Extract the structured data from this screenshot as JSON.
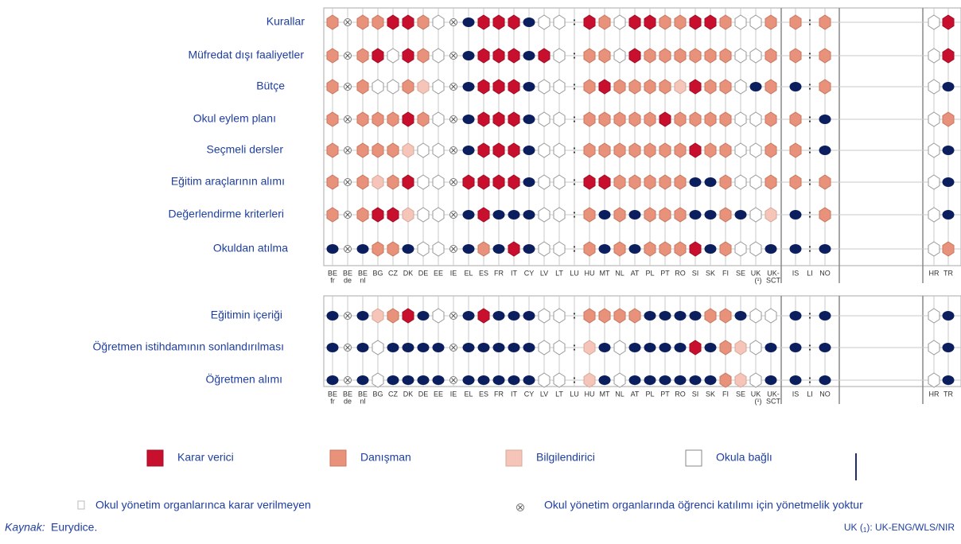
{
  "columns": [
    [
      "BE",
      "fr"
    ],
    [
      "BE",
      "de"
    ],
    [
      "BE",
      "nl"
    ],
    [
      "BG"
    ],
    [
      "CZ"
    ],
    [
      "DK"
    ],
    [
      "DE"
    ],
    [
      "EE"
    ],
    [
      "IE"
    ],
    [
      "EL"
    ],
    [
      "ES"
    ],
    [
      "FR"
    ],
    [
      "IT"
    ],
    [
      "CY"
    ],
    [
      "LV"
    ],
    [
      "LT"
    ],
    [
      "LU"
    ],
    [
      "HU"
    ],
    [
      "MT"
    ],
    [
      "NL"
    ],
    [
      "AT"
    ],
    [
      "PL"
    ],
    [
      "PT"
    ],
    [
      "RO"
    ],
    [
      "SI"
    ],
    [
      "SK"
    ],
    [
      "FI"
    ],
    [
      "SE"
    ],
    [
      "UK",
      "(¹)"
    ],
    [
      "UK-",
      "SCT"
    ],
    [
      "IS"
    ],
    [
      "LI"
    ],
    [
      "NO"
    ],
    [
      "HR"
    ],
    [
      "TR"
    ]
  ],
  "categories": [
    "Karar verici",
    "Danışman",
    "Bilgilendirici",
    "Okula bağlı",
    "Okul yönetim organlarınca karar verilmeyen",
    "Okul yönetim organlarında öğrenci katılımı için yönetmelik yoktur"
  ],
  "rows_top": [
    {
      "label": "Kurallar",
      "cells": [
        1,
        5,
        1,
        1,
        0,
        0,
        1,
        3,
        5,
        4,
        0,
        0,
        0,
        4,
        3,
        3,
        ":",
        0,
        1,
        3,
        0,
        0,
        1,
        1,
        0,
        0,
        1,
        3,
        3,
        1,
        1,
        ":",
        1,
        3,
        0
      ]
    },
    {
      "label": "Müfredat dışı faaliyetler",
      "cells": [
        1,
        5,
        1,
        0,
        3,
        0,
        1,
        3,
        5,
        4,
        0,
        0,
        0,
        4,
        0,
        3,
        ":",
        1,
        1,
        3,
        0,
        1,
        1,
        1,
        1,
        1,
        1,
        3,
        3,
        1,
        1,
        ":",
        1,
        3,
        0
      ]
    },
    {
      "label": "Bütçe",
      "cells": [
        1,
        5,
        1,
        3,
        3,
        1,
        2,
        3,
        5,
        4,
        0,
        0,
        0,
        4,
        3,
        3,
        ":",
        1,
        0,
        1,
        1,
        1,
        1,
        2,
        0,
        1,
        1,
        3,
        4,
        1,
        4,
        ":",
        1,
        3,
        4
      ]
    },
    {
      "label": "Okul eylem planı",
      "cells": [
        1,
        5,
        1,
        1,
        1,
        0,
        1,
        3,
        5,
        4,
        0,
        0,
        0,
        4,
        3,
        3,
        ":",
        1,
        1,
        1,
        1,
        1,
        0,
        1,
        1,
        1,
        1,
        3,
        3,
        1,
        1,
        ":",
        4,
        3,
        1
      ]
    },
    {
      "label": "Seçmeli dersler",
      "cells": [
        1,
        5,
        1,
        1,
        1,
        2,
        3,
        3,
        5,
        4,
        0,
        0,
        0,
        4,
        3,
        3,
        ":",
        1,
        1,
        1,
        1,
        1,
        1,
        1,
        0,
        1,
        1,
        3,
        3,
        1,
        1,
        ":",
        4,
        3,
        4
      ]
    },
    {
      "label": "Eğitim araçlarının alımı",
      "cells": [
        1,
        5,
        1,
        2,
        1,
        0,
        3,
        3,
        5,
        0,
        0,
        0,
        0,
        4,
        3,
        3,
        ":",
        0,
        0,
        1,
        1,
        1,
        1,
        1,
        4,
        4,
        1,
        3,
        3,
        1,
        1,
        ":",
        1,
        3,
        4
      ]
    },
    {
      "label": "Değerlendirme kriterleri",
      "cells": [
        1,
        5,
        1,
        0,
        0,
        2,
        3,
        3,
        5,
        4,
        0,
        4,
        4,
        4,
        3,
        3,
        ":",
        1,
        4,
        1,
        4,
        1,
        1,
        1,
        4,
        4,
        1,
        4,
        3,
        2,
        4,
        ":",
        1,
        3,
        4
      ]
    },
    {
      "label": "Okuldan atılma",
      "cells": [
        4,
        5,
        4,
        1,
        1,
        4,
        3,
        3,
        5,
        4,
        1,
        4,
        0,
        4,
        3,
        3,
        ":",
        1,
        4,
        1,
        4,
        1,
        1,
        1,
        0,
        4,
        1,
        3,
        3,
        4,
        4,
        ":",
        4,
        3,
        1
      ]
    }
  ],
  "rows_bottom": [
    {
      "label": "Eğitimin içeriği",
      "cells": [
        4,
        5,
        4,
        2,
        1,
        0,
        4,
        3,
        5,
        4,
        0,
        4,
        4,
        4,
        3,
        3,
        ":",
        1,
        1,
        1,
        1,
        4,
        4,
        4,
        4,
        1,
        1,
        4,
        3,
        3,
        4,
        ":",
        4,
        3,
        4
      ]
    },
    {
      "label": "Öğretmen istihdamının sonlandırılması",
      "cells": [
        4,
        5,
        4,
        3,
        4,
        4,
        4,
        4,
        5,
        4,
        4,
        4,
        4,
        4,
        3,
        3,
        ":",
        2,
        4,
        3,
        4,
        4,
        4,
        4,
        0,
        4,
        1,
        2,
        3,
        4,
        4,
        ":",
        4,
        3,
        4
      ]
    },
    {
      "label": "Öğretmen alımı",
      "cells": [
        4,
        5,
        4,
        3,
        4,
        4,
        4,
        4,
        5,
        4,
        4,
        4,
        4,
        4,
        3,
        3,
        ":",
        2,
        4,
        3,
        4,
        4,
        4,
        4,
        4,
        4,
        1,
        2,
        3,
        4,
        4,
        ":",
        4,
        3,
        4
      ]
    }
  ],
  "source": {
    "prefix": "Kaynak:",
    "text": "Eurydice."
  },
  "footnote": {
    "a": "UK (",
    "sub": "1",
    "b": "): UK-ENG/WLS/NIR"
  }
}
